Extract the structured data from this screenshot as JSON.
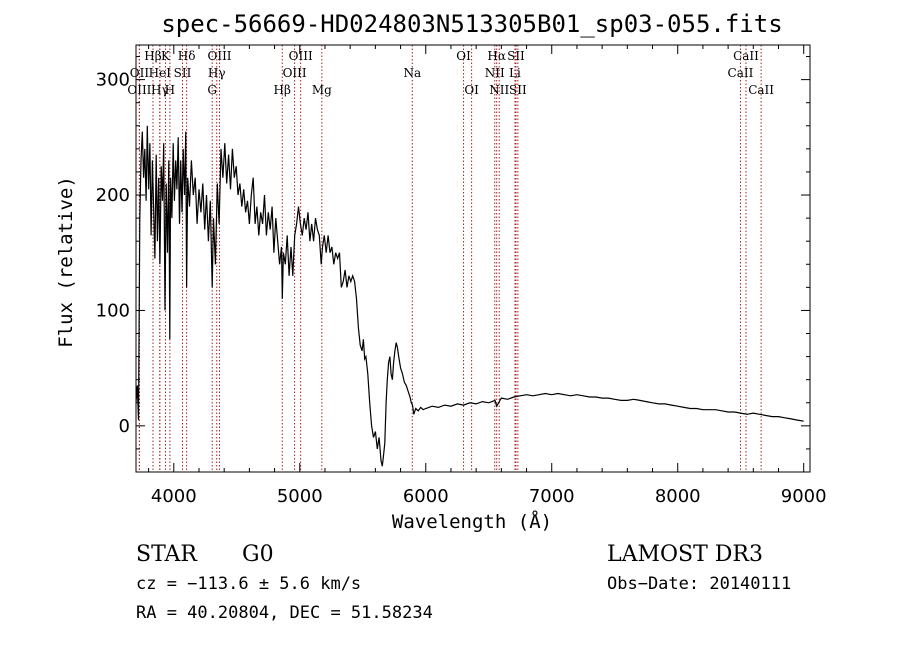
{
  "chart_data": {
    "type": "line",
    "title": "spec-56669-HD024803N513305B01_sp03-055.fits",
    "xlabel": "Wavelength (Å)",
    "ylabel": "Flux (relative)",
    "xlim": [
      3700,
      9050
    ],
    "ylim": [
      -40,
      330
    ],
    "x_ticks": [
      4000,
      5000,
      6000,
      7000,
      8000,
      9000
    ],
    "x_tick_labels": [
      "4000",
      "5000",
      "6000",
      "7000",
      "8000",
      "9000"
    ],
    "y_ticks": [
      0,
      100,
      200,
      300
    ],
    "y_tick_labels": [
      "0",
      "100",
      "200",
      "300"
    ],
    "grid": false,
    "line_color": "#000000",
    "marker_color": "#aa2222",
    "spectral_lines": [
      {
        "label": "Hβ",
        "wavelength": 3835,
        "row": 0
      },
      {
        "label": "OII",
        "wavelength": 3727,
        "row": 1
      },
      {
        "label": "OIII",
        "wavelength": 3727,
        "row": 2
      },
      {
        "label": "Hγ",
        "wavelength": 3889,
        "row": 2
      },
      {
        "label": "K",
        "wavelength": 3934,
        "row": 0
      },
      {
        "label": "HeI",
        "wavelength": 3889,
        "row": 1
      },
      {
        "label": "H",
        "wavelength": 3969,
        "row": 2
      },
      {
        "label": "Hδ",
        "wavelength": 4102,
        "row": 0
      },
      {
        "label": "SII",
        "wavelength": 4069,
        "row": 1
      },
      {
        "label": "OIII",
        "wavelength": 4363,
        "row": 0
      },
      {
        "label": "Hγ",
        "wavelength": 4341,
        "row": 1
      },
      {
        "label": "G",
        "wavelength": 4305,
        "row": 2
      },
      {
        "label": "Hβ",
        "wavelength": 4861,
        "row": 2
      },
      {
        "label": "OIII",
        "wavelength": 5007,
        "row": 0
      },
      {
        "label": "OIII",
        "wavelength": 4959,
        "row": 1
      },
      {
        "label": "Mg",
        "wavelength": 5175,
        "row": 2
      },
      {
        "label": "Na",
        "wavelength": 5893,
        "row": 1
      },
      {
        "label": "OI",
        "wavelength": 6300,
        "row": 0
      },
      {
        "label": "OI",
        "wavelength": 6364,
        "row": 2
      },
      {
        "label": "Hα",
        "wavelength": 6563,
        "row": 0
      },
      {
        "label": "NII",
        "wavelength": 6548,
        "row": 1
      },
      {
        "label": "NII",
        "wavelength": 6583,
        "row": 2
      },
      {
        "label": "SII",
        "wavelength": 6716,
        "row": 0
      },
      {
        "label": "Li",
        "wavelength": 6708,
        "row": 1
      },
      {
        "label": "SII",
        "wavelength": 6731,
        "row": 2
      },
      {
        "label": "CaII",
        "wavelength": 8498,
        "row": 1
      },
      {
        "label": "CaII",
        "wavelength": 8542,
        "row": 0
      },
      {
        "label": "CaII",
        "wavelength": 8662,
        "row": 2
      }
    ],
    "series": [
      {
        "color": "#000000",
        "points": [
          [
            3700,
            20
          ],
          [
            3710,
            35
          ],
          [
            3720,
            5
          ],
          [
            3730,
            180
          ],
          [
            3740,
            230
          ],
          [
            3750,
            255
          ],
          [
            3760,
            215
          ],
          [
            3770,
            240
          ],
          [
            3780,
            195
          ],
          [
            3790,
            260
          ],
          [
            3800,
            205
          ],
          [
            3810,
            245
          ],
          [
            3820,
            165
          ],
          [
            3830,
            230
          ],
          [
            3840,
            190
          ],
          [
            3850,
            145
          ],
          [
            3860,
            235
          ],
          [
            3870,
            160
          ],
          [
            3880,
            215
          ],
          [
            3890,
            140
          ],
          [
            3900,
            225
          ],
          [
            3910,
            195
          ],
          [
            3920,
            245
          ],
          [
            3930,
            100
          ],
          [
            3940,
            210
          ],
          [
            3950,
            150
          ],
          [
            3960,
            230
          ],
          [
            3968,
            75
          ],
          [
            3975,
            215
          ],
          [
            3985,
            180
          ],
          [
            3995,
            245
          ],
          [
            4005,
            195
          ],
          [
            4015,
            230
          ],
          [
            4025,
            205
          ],
          [
            4035,
            250
          ],
          [
            4045,
            175
          ],
          [
            4055,
            230
          ],
          [
            4065,
            185
          ],
          [
            4075,
            240
          ],
          [
            4085,
            200
          ],
          [
            4095,
            255
          ],
          [
            4102,
            120
          ],
          [
            4110,
            215
          ],
          [
            4125,
            190
          ],
          [
            4140,
            230
          ],
          [
            4155,
            200
          ],
          [
            4170,
            215
          ],
          [
            4185,
            175
          ],
          [
            4200,
            205
          ],
          [
            4215,
            185
          ],
          [
            4230,
            210
          ],
          [
            4245,
            170
          ],
          [
            4260,
            200
          ],
          [
            4275,
            160
          ],
          [
            4290,
            195
          ],
          [
            4305,
            120
          ],
          [
            4315,
            180
          ],
          [
            4330,
            140
          ],
          [
            4345,
            210
          ],
          [
            4360,
            175
          ],
          [
            4375,
            240
          ],
          [
            4390,
            215
          ],
          [
            4405,
            245
          ],
          [
            4420,
            210
          ],
          [
            4435,
            235
          ],
          [
            4450,
            205
          ],
          [
            4465,
            240
          ],
          [
            4480,
            215
          ],
          [
            4495,
            225
          ],
          [
            4510,
            200
          ],
          [
            4525,
            210
          ],
          [
            4540,
            190
          ],
          [
            4555,
            205
          ],
          [
            4570,
            185
          ],
          [
            4585,
            195
          ],
          [
            4600,
            175
          ],
          [
            4615,
            200
          ],
          [
            4630,
            215
          ],
          [
            4645,
            175
          ],
          [
            4660,
            190
          ],
          [
            4675,
            165
          ],
          [
            4690,
            185
          ],
          [
            4705,
            175
          ],
          [
            4720,
            200
          ],
          [
            4735,
            165
          ],
          [
            4750,
            185
          ],
          [
            4765,
            170
          ],
          [
            4780,
            190
          ],
          [
            4795,
            150
          ],
          [
            4810,
            180
          ],
          [
            4825,
            160
          ],
          [
            4840,
            140
          ],
          [
            4855,
            155
          ],
          [
            4861,
            110
          ],
          [
            4870,
            150
          ],
          [
            4885,
            140
          ],
          [
            4900,
            165
          ],
          [
            4915,
            130
          ],
          [
            4930,
            155
          ],
          [
            4945,
            130
          ],
          [
            4960,
            165
          ],
          [
            4975,
            175
          ],
          [
            4990,
            190
          ],
          [
            5005,
            175
          ],
          [
            5020,
            165
          ],
          [
            5035,
            180
          ],
          [
            5050,
            170
          ],
          [
            5065,
            185
          ],
          [
            5080,
            160
          ],
          [
            5095,
            175
          ],
          [
            5110,
            160
          ],
          [
            5125,
            180
          ],
          [
            5140,
            170
          ],
          [
            5155,
            165
          ],
          [
            5170,
            140
          ],
          [
            5180,
            155
          ],
          [
            5195,
            165
          ],
          [
            5210,
            150
          ],
          [
            5225,
            165
          ],
          [
            5240,
            150
          ],
          [
            5255,
            155
          ],
          [
            5270,
            140
          ],
          [
            5285,
            150
          ],
          [
            5300,
            145
          ],
          [
            5315,
            150
          ],
          [
            5330,
            120
          ],
          [
            5345,
            125
          ],
          [
            5360,
            135
          ],
          [
            5375,
            120
          ],
          [
            5390,
            130
          ],
          [
            5405,
            125
          ],
          [
            5420,
            130
          ],
          [
            5435,
            125
          ],
          [
            5450,
            110
          ],
          [
            5465,
            85
          ],
          [
            5480,
            70
          ],
          [
            5495,
            65
          ],
          [
            5505,
            75
          ],
          [
            5515,
            58
          ],
          [
            5525,
            60
          ],
          [
            5540,
            45
          ],
          [
            5555,
            20
          ],
          [
            5570,
            0
          ],
          [
            5585,
            -10
          ],
          [
            5600,
            -5
          ],
          [
            5615,
            -20
          ],
          [
            5630,
            -10
          ],
          [
            5645,
            -30
          ],
          [
            5655,
            -35
          ],
          [
            5665,
            -25
          ],
          [
            5675,
            -15
          ],
          [
            5685,
            20
          ],
          [
            5695,
            40
          ],
          [
            5705,
            55
          ],
          [
            5715,
            60
          ],
          [
            5725,
            45
          ],
          [
            5735,
            40
          ],
          [
            5745,
            55
          ],
          [
            5755,
            65
          ],
          [
            5765,
            72
          ],
          [
            5775,
            68
          ],
          [
            5785,
            60
          ],
          [
            5800,
            50
          ],
          [
            5815,
            45
          ],
          [
            5830,
            38
          ],
          [
            5845,
            35
          ],
          [
            5860,
            30
          ],
          [
            5875,
            25
          ],
          [
            5885,
            20
          ],
          [
            5895,
            18
          ],
          [
            5905,
            10
          ],
          [
            5920,
            15
          ],
          [
            5940,
            13
          ],
          [
            5960,
            16
          ],
          [
            5980,
            14
          ],
          [
            6000,
            15
          ],
          [
            6050,
            17
          ],
          [
            6100,
            16
          ],
          [
            6150,
            18
          ],
          [
            6200,
            17
          ],
          [
            6250,
            19
          ],
          [
            6300,
            18
          ],
          [
            6350,
            20
          ],
          [
            6400,
            19
          ],
          [
            6450,
            21
          ],
          [
            6500,
            20
          ],
          [
            6550,
            22
          ],
          [
            6563,
            17
          ],
          [
            6600,
            24
          ],
          [
            6650,
            23
          ],
          [
            6700,
            25
          ],
          [
            6750,
            26
          ],
          [
            6800,
            27
          ],
          [
            6850,
            26
          ],
          [
            6900,
            27
          ],
          [
            6950,
            28
          ],
          [
            7000,
            27
          ],
          [
            7050,
            28
          ],
          [
            7100,
            27
          ],
          [
            7150,
            26
          ],
          [
            7200,
            27
          ],
          [
            7250,
            26
          ],
          [
            7300,
            25
          ],
          [
            7350,
            25
          ],
          [
            7400,
            24
          ],
          [
            7450,
            24
          ],
          [
            7500,
            23
          ],
          [
            7550,
            22
          ],
          [
            7600,
            22
          ],
          [
            7650,
            23
          ],
          [
            7700,
            22
          ],
          [
            7750,
            21
          ],
          [
            7800,
            20
          ],
          [
            7850,
            19
          ],
          [
            7900,
            19
          ],
          [
            7950,
            18
          ],
          [
            8000,
            17
          ],
          [
            8050,
            16
          ],
          [
            8100,
            15
          ],
          [
            8150,
            15
          ],
          [
            8200,
            14
          ],
          [
            8250,
            14
          ],
          [
            8300,
            14
          ],
          [
            8350,
            13
          ],
          [
            8400,
            12
          ],
          [
            8450,
            12
          ],
          [
            8500,
            11
          ],
          [
            8550,
            10
          ],
          [
            8600,
            11
          ],
          [
            8650,
            10
          ],
          [
            8700,
            9
          ],
          [
            8750,
            8
          ],
          [
            8800,
            8
          ],
          [
            8850,
            7
          ],
          [
            8900,
            6
          ],
          [
            8950,
            5
          ],
          [
            9000,
            4
          ]
        ]
      }
    ]
  },
  "footer": {
    "object_class": "STAR",
    "subclass": "G0",
    "survey": "LAMOST DR3",
    "cz": "cz = −113.6 ± 5.6 km/s",
    "obs_date": "Obs−Date: 20140111",
    "coords": "RA =  40.20804, DEC =  51.58234"
  }
}
